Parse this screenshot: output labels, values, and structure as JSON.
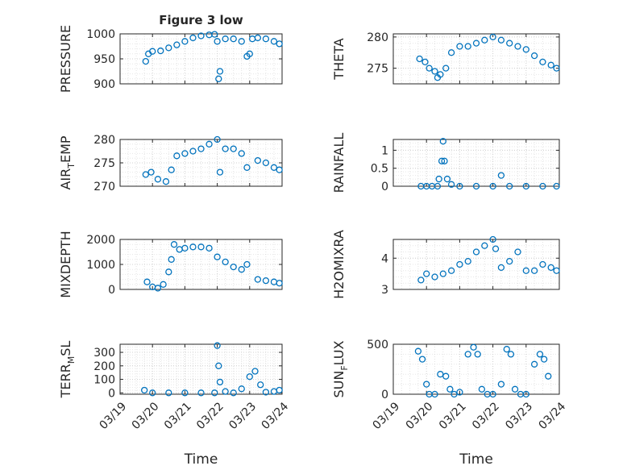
{
  "chart_data": [
    {
      "type": "scatter",
      "title": "Figure 3 low",
      "ylabel": "PRESSURE",
      "xlim": [
        "03/19",
        "03/24"
      ],
      "ylim": [
        900,
        1000
      ],
      "yticks": [
        900,
        950,
        1000
      ],
      "xticks": [],
      "x": [
        "03/19 19:00",
        "03/19 21:00",
        "03/20 00:00",
        "03/20 06:00",
        "03/20 12:00",
        "03/20 18:00",
        "03/21 00:00",
        "03/21 06:00",
        "03/21 12:00",
        "03/21 18:00",
        "03/21 22:00",
        "03/22 00:00",
        "03/22 01:00",
        "03/22 02:00",
        "03/22 06:00",
        "03/22 12:00",
        "03/22 18:00",
        "03/22 22:00",
        "03/23 00:00",
        "03/23 02:00",
        "03/23 06:00",
        "03/23 12:00",
        "03/23 18:00",
        "03/23 22:00"
      ],
      "y": [
        945,
        960,
        965,
        966,
        972,
        978,
        985,
        992,
        996,
        998,
        999,
        985,
        910,
        925,
        990,
        990,
        985,
        955,
        960,
        990,
        992,
        990,
        985,
        980
      ]
    },
    {
      "type": "scatter",
      "ylabel": "THETA",
      "xlim": [
        "03/19",
        "03/24"
      ],
      "ylim": [
        272.5,
        280.5
      ],
      "yticks": [
        275,
        280
      ],
      "xticks": [],
      "x": [
        "03/19 19:00",
        "03/19 23:00",
        "03/20 02:00",
        "03/20 06:00",
        "03/20 08:00",
        "03/20 10:00",
        "03/20 14:00",
        "03/20 18:00",
        "03/21 00:00",
        "03/21 06:00",
        "03/21 12:00",
        "03/21 18:00",
        "03/22 00:00",
        "03/22 06:00",
        "03/22 12:00",
        "03/22 18:00",
        "03/23 00:00",
        "03/23 06:00",
        "03/23 12:00",
        "03/23 18:00",
        "03/23 22:00"
      ],
      "y": [
        276.5,
        276,
        275,
        274.5,
        273.5,
        274,
        275,
        277.5,
        278.5,
        278.5,
        279,
        279.5,
        280,
        279.5,
        279,
        278.5,
        278,
        277,
        276,
        275.5,
        275
      ]
    },
    {
      "type": "scatter",
      "ylabel": "AIR_TEMP",
      "xlim": [
        "03/19",
        "03/24"
      ],
      "ylim": [
        270,
        280
      ],
      "yticks": [
        270,
        275,
        280
      ],
      "xticks": [],
      "x": [
        "03/19 19:00",
        "03/19 23:00",
        "03/20 04:00",
        "03/20 10:00",
        "03/20 14:00",
        "03/20 18:00",
        "03/21 00:00",
        "03/21 06:00",
        "03/21 12:00",
        "03/21 18:00",
        "03/22 00:00",
        "03/22 02:00",
        "03/22 06:00",
        "03/22 12:00",
        "03/22 18:00",
        "03/22 22:00",
        "03/23 06:00",
        "03/23 12:00",
        "03/23 18:00",
        "03/23 22:00"
      ],
      "y": [
        272.5,
        273,
        271.5,
        271,
        273.5,
        276.5,
        277,
        277.5,
        278,
        279,
        280,
        273,
        278,
        278,
        277,
        274,
        275.5,
        275,
        274,
        273.5
      ]
    },
    {
      "type": "scatter",
      "ylabel": "RAINFALL",
      "xlim": [
        "03/19",
        "03/24"
      ],
      "ylim": [
        0,
        1.3
      ],
      "yticks": [
        0,
        0.5,
        1
      ],
      "xticks": [],
      "x": [
        "03/19 20:00",
        "03/20 00:00",
        "03/20 04:00",
        "03/20 08:00",
        "03/20 09:00",
        "03/20 11:00",
        "03/20 12:00",
        "03/20 13:00",
        "03/20 15:00",
        "03/20 18:00",
        "03/21 00:00",
        "03/21 12:00",
        "03/22 00:00",
        "03/22 06:00",
        "03/22 12:00",
        "03/23 00:00",
        "03/23 12:00",
        "03/23 22:00"
      ],
      "y": [
        0,
        0,
        0,
        0,
        0.2,
        0.7,
        1.25,
        0.7,
        0.2,
        0.05,
        0,
        0,
        0,
        0.3,
        0,
        0,
        0,
        0
      ]
    },
    {
      "type": "scatter",
      "ylabel": "MIXDEPTH",
      "xlim": [
        "03/19",
        "03/24"
      ],
      "ylim": [
        0,
        2000
      ],
      "yticks": [
        0,
        1000,
        2000
      ],
      "xticks": [],
      "x": [
        "03/19 20:00",
        "03/20 00:00",
        "03/20 04:00",
        "03/20 08:00",
        "03/20 12:00",
        "03/20 14:00",
        "03/20 16:00",
        "03/20 20:00",
        "03/21 00:00",
        "03/21 06:00",
        "03/21 12:00",
        "03/21 18:00",
        "03/22 00:00",
        "03/22 06:00",
        "03/22 12:00",
        "03/22 18:00",
        "03/22 22:00",
        "03/23 06:00",
        "03/23 12:00",
        "03/23 18:00",
        "03/23 22:00"
      ],
      "y": [
        300,
        100,
        50,
        200,
        700,
        1200,
        1800,
        1600,
        1650,
        1700,
        1700,
        1650,
        1300,
        1100,
        900,
        800,
        1000,
        400,
        350,
        300,
        250
      ]
    },
    {
      "type": "scatter",
      "ylabel": "H2OMIXRA",
      "xlim": [
        "03/19",
        "03/24"
      ],
      "ylim": [
        3,
        4.6
      ],
      "yticks": [
        3,
        4
      ],
      "xticks": [],
      "x": [
        "03/19 20:00",
        "03/20 00:00",
        "03/20 06:00",
        "03/20 12:00",
        "03/20 18:00",
        "03/21 00:00",
        "03/21 06:00",
        "03/21 12:00",
        "03/21 18:00",
        "03/22 00:00",
        "03/22 02:00",
        "03/22 06:00",
        "03/22 12:00",
        "03/22 18:00",
        "03/23 00:00",
        "03/23 06:00",
        "03/23 12:00",
        "03/23 18:00",
        "03/23 22:00"
      ],
      "y": [
        3.3,
        3.5,
        3.4,
        3.5,
        3.6,
        3.8,
        3.9,
        4.2,
        4.4,
        4.6,
        4.3,
        3.7,
        3.9,
        4.2,
        3.6,
        3.6,
        3.8,
        3.7,
        3.6
      ]
    },
    {
      "type": "scatter",
      "ylabel": "TERR_MSL",
      "xlim": [
        "03/19",
        "03/24"
      ],
      "ylim": [
        -10,
        360
      ],
      "yticks": [
        0,
        100,
        200,
        300
      ],
      "xticks": [
        "03/19",
        "03/20",
        "03/21",
        "03/22",
        "03/23",
        "03/24"
      ],
      "xlabel": "Time",
      "x": [
        "03/19 18:00",
        "03/20 00:00",
        "03/20 12:00",
        "03/21 00:00",
        "03/21 12:00",
        "03/21 22:00",
        "03/22 00:00",
        "03/22 01:00",
        "03/22 02:00",
        "03/22 06:00",
        "03/22 12:00",
        "03/22 18:00",
        "03/23 00:00",
        "03/23 04:00",
        "03/23 08:00",
        "03/23 12:00",
        "03/23 18:00",
        "03/23 22:00"
      ],
      "y": [
        20,
        0,
        0,
        0,
        0,
        0,
        350,
        200,
        80,
        10,
        0,
        30,
        120,
        160,
        60,
        5,
        10,
        20
      ]
    },
    {
      "type": "scatter",
      "ylabel": "SUN_FLUX",
      "xlim": [
        "03/19",
        "03/24"
      ],
      "ylim": [
        0,
        500
      ],
      "yticks": [
        0,
        500
      ],
      "xticks": [
        "03/19",
        "03/20",
        "03/21",
        "03/22",
        "03/23",
        "03/24"
      ],
      "xlabel": "Time",
      "x": [
        "03/19 18:00",
        "03/19 21:00",
        "03/20 00:00",
        "03/20 02:00",
        "03/20 06:00",
        "03/20 10:00",
        "03/20 14:00",
        "03/20 17:00",
        "03/20 20:00",
        "03/21 00:00",
        "03/21 06:00",
        "03/21 10:00",
        "03/21 13:00",
        "03/21 16:00",
        "03/21 20:00",
        "03/22 00:00",
        "03/22 06:00",
        "03/22 10:00",
        "03/22 13:00",
        "03/22 16:00",
        "03/22 20:00",
        "03/23 00:00",
        "03/23 06:00",
        "03/23 10:00",
        "03/23 13:00",
        "03/23 16:00"
      ],
      "y": [
        430,
        350,
        100,
        0,
        0,
        200,
        180,
        50,
        0,
        20,
        400,
        470,
        400,
        50,
        0,
        0,
        100,
        450,
        400,
        50,
        0,
        0,
        300,
        400,
        350,
        180
      ]
    }
  ]
}
